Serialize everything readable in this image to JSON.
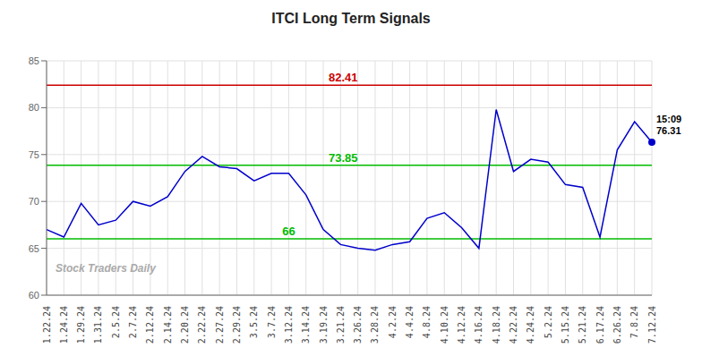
{
  "chart_data": {
    "type": "line",
    "title": "ITCI Long Term Signals",
    "categories": [
      "1.22.24",
      "1.24.24",
      "1.29.24",
      "1.31.24",
      "2.5.24",
      "2.7.24",
      "2.12.24",
      "2.14.24",
      "2.20.24",
      "2.22.24",
      "2.27.24",
      "2.29.24",
      "3.5.24",
      "3.7.24",
      "3.12.24",
      "3.14.24",
      "3.19.24",
      "3.21.24",
      "3.26.24",
      "3.28.24",
      "4.2.24",
      "4.4.24",
      "4.8.24",
      "4.10.24",
      "4.12.24",
      "4.16.24",
      "4.18.24",
      "4.22.24",
      "4.24.24",
      "5.2.24",
      "5.15.24",
      "5.21.24",
      "6.17.24",
      "6.26.24",
      "7.8.24",
      "7.12.24"
    ],
    "values": [
      67.0,
      66.2,
      69.8,
      67.5,
      68.0,
      70.0,
      69.5,
      70.5,
      73.2,
      74.8,
      73.7,
      73.5,
      72.2,
      73.0,
      73.0,
      70.7,
      67.0,
      65.4,
      65.0,
      64.8,
      65.4,
      65.7,
      68.2,
      68.8,
      67.2,
      65.0,
      79.8,
      73.2,
      74.5,
      74.2,
      71.8,
      71.5,
      66.2,
      75.5,
      78.5,
      76.31
    ],
    "color": "#0000cc",
    "ylim": [
      60,
      85
    ],
    "yticks": [
      60,
      65,
      70,
      75,
      80,
      85
    ],
    "grid": true,
    "hlines": [
      {
        "value": 82.41,
        "label": "82.41",
        "color": "#cc0000"
      },
      {
        "value": 73.85,
        "label": "73.85",
        "color": "#00bb00"
      },
      {
        "value": 66.0,
        "label": "66",
        "color": "#00bb00"
      }
    ],
    "annotation": {
      "category": "7.12.24",
      "value": 76.31,
      "text": [
        "15:09",
        "76.31"
      ]
    },
    "watermark": "Stock Traders Daily"
  }
}
